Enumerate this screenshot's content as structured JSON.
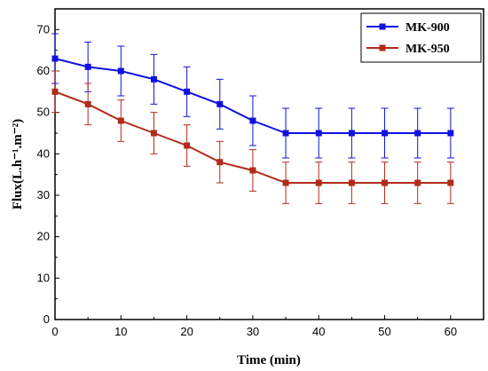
{
  "chart_data": {
    "type": "line",
    "xlabel": "Time (min)",
    "ylabel": "Flux(L.h⁻¹.m⁻²)",
    "xlim": [
      0,
      65
    ],
    "ylim": [
      0,
      75
    ],
    "xticks": [
      0,
      10,
      20,
      30,
      40,
      50,
      60
    ],
    "yticks": [
      0,
      10,
      20,
      30,
      40,
      50,
      60,
      70
    ],
    "grid": false,
    "legend": "top-right",
    "x": [
      0,
      5,
      10,
      15,
      20,
      25,
      30,
      35,
      40,
      45,
      50,
      55,
      60
    ],
    "series": [
      {
        "name": "MK-900",
        "color": "#1010e0",
        "marker": "square",
        "values": [
          63,
          61,
          60,
          58,
          55,
          52,
          48,
          45,
          45,
          45,
          45,
          45,
          45
        ],
        "errors": [
          6,
          6,
          6,
          6,
          6,
          6,
          6,
          6,
          6,
          6,
          6,
          6,
          6
        ]
      },
      {
        "name": "MK-950",
        "color": "#b22a1a",
        "marker": "square",
        "values": [
          55,
          52,
          48,
          45,
          42,
          38,
          36,
          33,
          33,
          33,
          33,
          33,
          33
        ],
        "errors": [
          5,
          5,
          5,
          5,
          5,
          5,
          5,
          5,
          5,
          5,
          5,
          5,
          5
        ]
      }
    ]
  }
}
